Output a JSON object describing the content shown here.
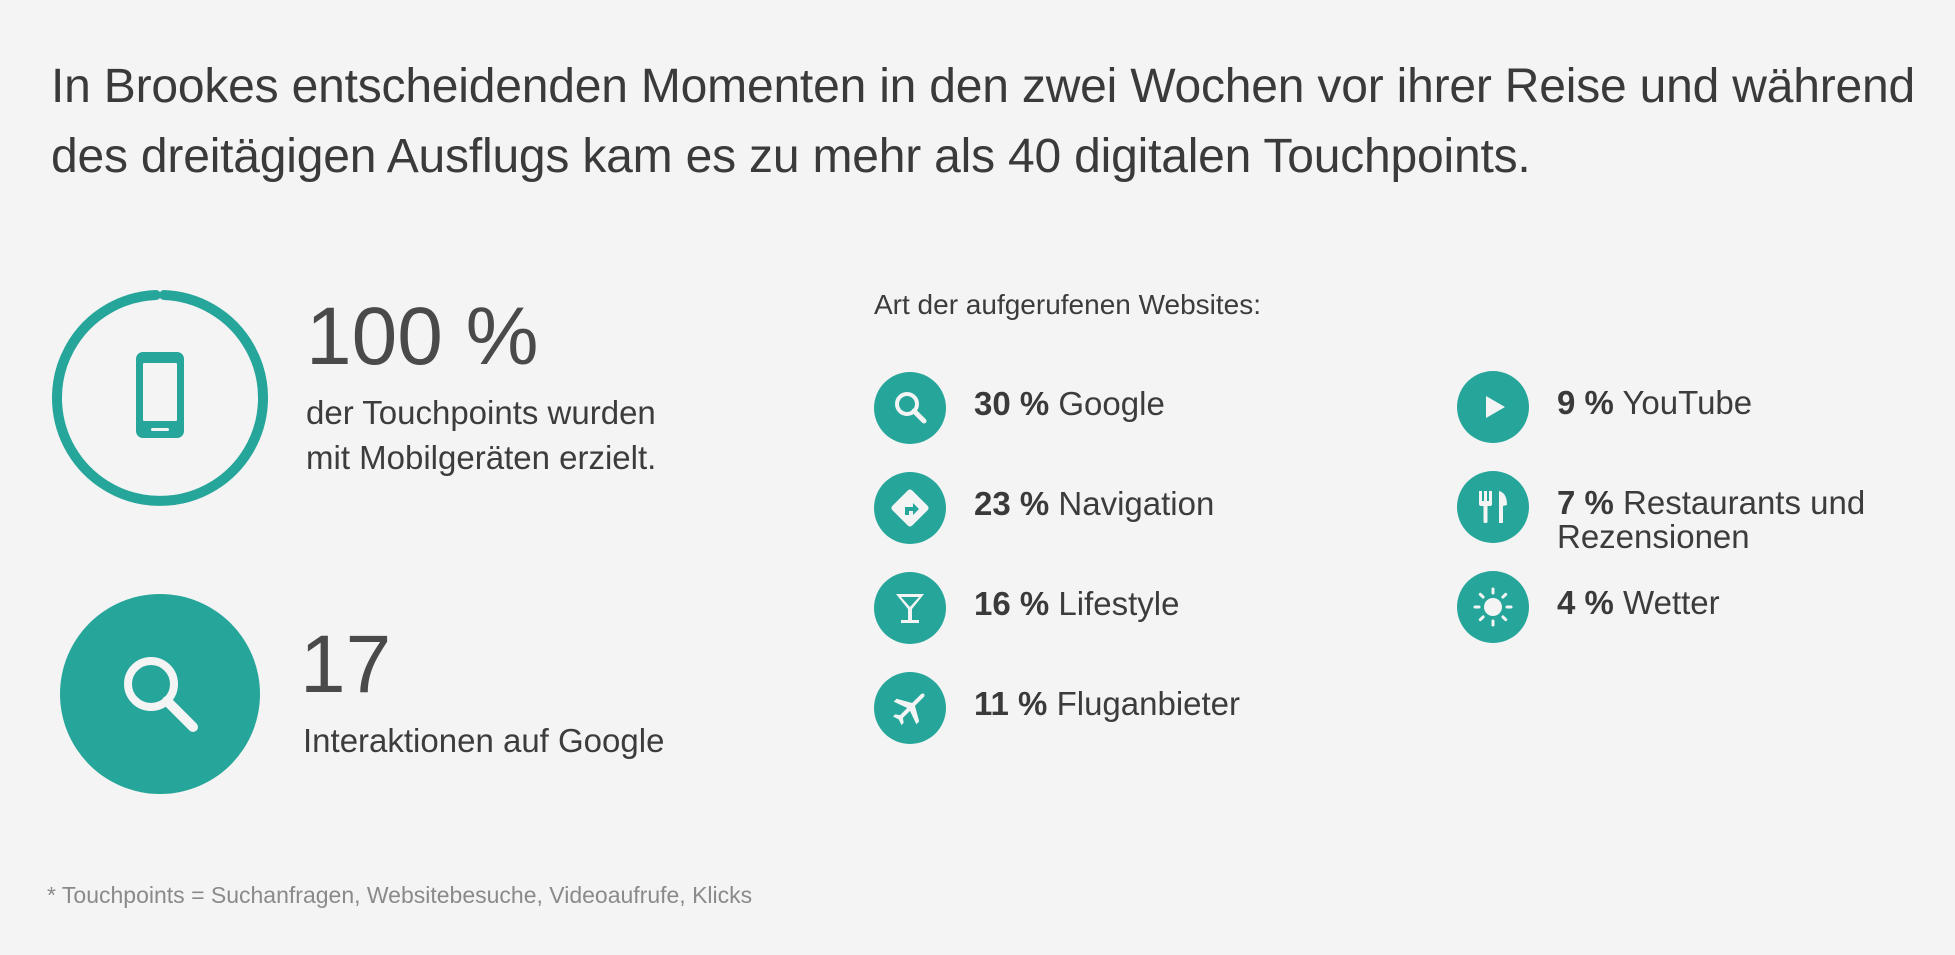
{
  "headline": {
    "line1": "In Brookes entscheidenden Momenten in den zwei Wochen vor ihrer Reise und während",
    "line2": "des dreitägigen Ausflugs kam es zu mehr als 40 digitalen Touchpoints."
  },
  "stats": {
    "mobile": {
      "value": "100 %",
      "desc_line1": "der Touchpoints wurden",
      "desc_line2": "mit Mobilgeräten erzielt.",
      "icon": "smartphone-icon",
      "ring_fraction": 1.0
    },
    "google": {
      "value": "17",
      "desc": "Interaktionen auf Google",
      "icon": "search-icon"
    }
  },
  "websites": {
    "title": "Art der aufgerufenen Websites:",
    "items": [
      {
        "pct": "30 %",
        "label": "Google",
        "icon": "search-icon"
      },
      {
        "pct": "23 %",
        "label": "Navigation",
        "icon": "directions-icon"
      },
      {
        "pct": "16 %",
        "label": "Lifestyle",
        "icon": "cocktail-icon"
      },
      {
        "pct": "11 %",
        "label": "Fluganbieter",
        "icon": "airplane-icon"
      },
      {
        "pct": "9 %",
        "label": "YouTube",
        "icon": "play-icon"
      },
      {
        "pct": "7 %",
        "label": "Restaurants und",
        "label2": "Rezensionen",
        "icon": "restaurant-icon"
      },
      {
        "pct": "4 %",
        "label": "Wetter",
        "icon": "sun-icon"
      }
    ]
  },
  "footnote": "* Touchpoints = Suchanfragen, Websitebesuche, Videoaufrufe, Klicks",
  "colors": {
    "accent": "#26a69a",
    "background": "#f4f4f4",
    "text": "#3c3c3c",
    "footnote": "#8a8a8a"
  }
}
